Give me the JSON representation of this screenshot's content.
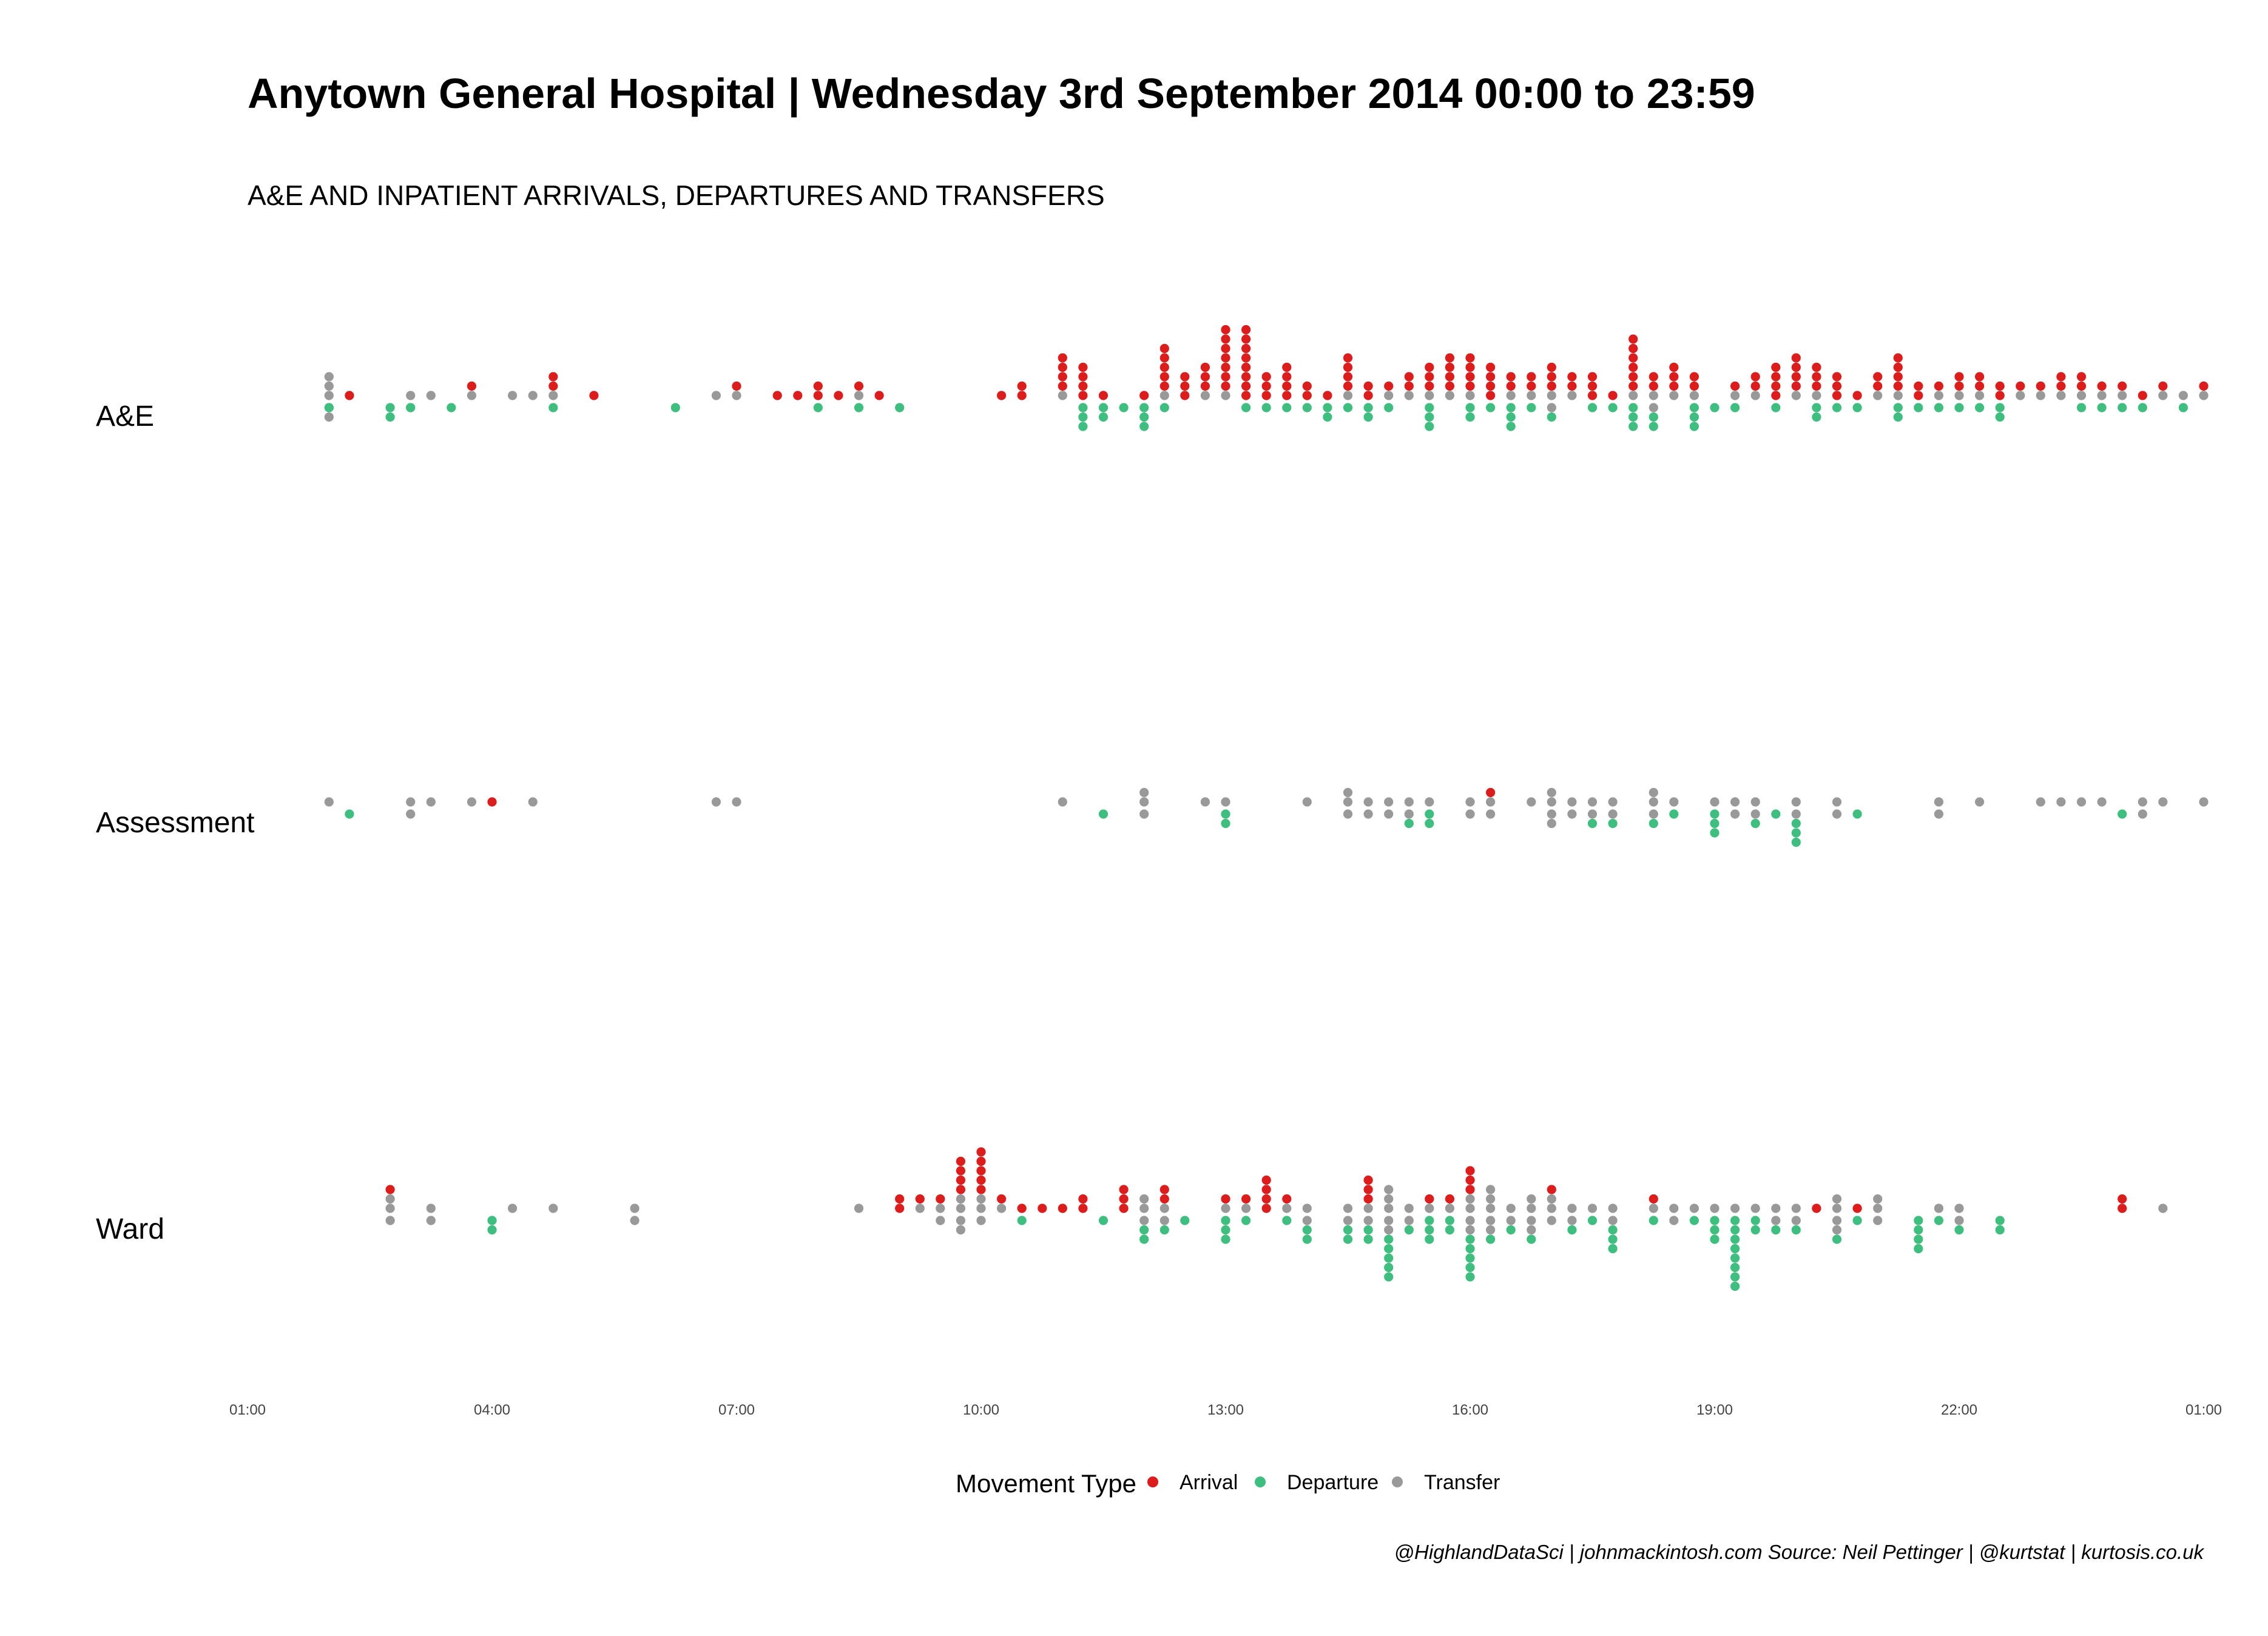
{
  "chart_data": {
    "type": "scatter",
    "subtype": "stacked dot plot",
    "title": "Anytown General Hospital | Wednesday 3rd September 2014 00:00 to 23:59",
    "subtitle": "A&E AND INPATIENT ARRIVALS, DEPARTURES AND TRANSFERS",
    "caption": "@HighlandDataSci | johnmackintosh.com  Source: Neil Pettinger | @kurtstat | kurtosis.co.uk",
    "x_domain_hours": [
      1,
      25
    ],
    "x_ticks": [
      "01:00",
      "04:00",
      "07:00",
      "10:00",
      "13:00",
      "16:00",
      "19:00",
      "22:00",
      "01:00"
    ],
    "legend": {
      "title": "Movement Type",
      "position": "bottom",
      "items": [
        {
          "label": "Arrival",
          "color": "#dd1c1c"
        },
        {
          "label": "Departure",
          "color": "#3fbf7f"
        },
        {
          "label": "Transfer",
          "color": "#999999"
        }
      ]
    },
    "colors": {
      "Arrival": "#dd1c1c",
      "Departure": "#3fbf7f",
      "Transfer": "#999999"
    },
    "rows": [
      {
        "name": "A&E",
        "bins": [
          [
            2.0,
            0,
            0,
            5
          ],
          [
            2.0,
            0,
            1,
            0
          ],
          [
            2.25,
            1,
            0,
            0
          ],
          [
            2.75,
            0,
            2,
            0
          ],
          [
            3.0,
            0,
            1,
            1
          ],
          [
            3.0,
            0,
            1,
            0
          ],
          [
            3.25,
            0,
            0,
            1
          ],
          [
            3.5,
            0,
            1,
            0
          ],
          [
            3.75,
            1,
            0,
            1
          ],
          [
            4.25,
            0,
            0,
            1
          ],
          [
            4.5,
            0,
            0,
            1
          ],
          [
            4.75,
            2,
            1,
            1
          ],
          [
            5.25,
            1,
            0,
            0
          ],
          [
            6.25,
            0,
            1,
            0
          ],
          [
            6.75,
            0,
            0,
            1
          ],
          [
            7.0,
            1,
            0,
            1
          ],
          [
            7.5,
            1,
            0,
            0
          ],
          [
            7.75,
            1,
            0,
            0
          ],
          [
            8.0,
            2,
            1,
            0
          ],
          [
            8.25,
            1,
            0,
            0
          ],
          [
            8.5,
            1,
            1,
            1
          ],
          [
            8.75,
            1,
            0,
            0
          ],
          [
            9.0,
            0,
            1,
            0
          ],
          [
            10.25,
            1,
            0,
            0
          ],
          [
            10.5,
            2,
            0,
            0
          ],
          [
            11.0,
            4,
            0,
            1
          ],
          [
            11.25,
            4,
            3,
            0
          ],
          [
            11.5,
            1,
            2,
            0
          ],
          [
            11.75,
            0,
            1,
            0
          ],
          [
            12.0,
            1,
            3,
            0
          ],
          [
            12.25,
            5,
            1,
            1
          ],
          [
            12.5,
            3,
            0,
            0
          ],
          [
            12.75,
            3,
            0,
            1
          ],
          [
            13.0,
            7,
            0,
            1
          ],
          [
            13.25,
            8,
            1,
            0
          ],
          [
            13.5,
            3,
            1,
            0
          ],
          [
            13.75,
            4,
            1,
            0
          ],
          [
            14.0,
            2,
            1,
            0
          ],
          [
            14.25,
            1,
            2,
            0
          ],
          [
            14.5,
            4,
            1,
            1
          ],
          [
            14.75,
            2,
            2,
            0
          ],
          [
            15.0,
            1,
            1,
            1
          ],
          [
            15.25,
            2,
            0,
            1
          ],
          [
            15.5,
            3,
            3,
            1
          ],
          [
            15.75,
            4,
            0,
            1
          ],
          [
            16.0,
            4,
            2,
            1
          ],
          [
            16.25,
            4,
            1,
            0
          ],
          [
            16.5,
            2,
            3,
            1
          ],
          [
            16.75,
            2,
            1,
            1
          ],
          [
            17.0,
            3,
            1,
            2
          ],
          [
            17.25,
            2,
            0,
            1
          ],
          [
            17.5,
            3,
            1,
            0
          ],
          [
            17.75,
            1,
            1,
            0
          ],
          [
            18.0,
            6,
            3,
            1
          ],
          [
            18.25,
            2,
            2,
            2
          ],
          [
            18.5,
            3,
            0,
            1
          ],
          [
            18.75,
            2,
            3,
            1
          ],
          [
            19.0,
            0,
            1,
            0
          ],
          [
            19.25,
            1,
            1,
            1
          ],
          [
            19.5,
            2,
            0,
            1
          ],
          [
            19.75,
            4,
            1,
            0
          ],
          [
            20.0,
            4,
            0,
            1
          ],
          [
            20.25,
            3,
            2,
            1
          ],
          [
            20.5,
            3,
            1,
            0
          ],
          [
            20.75,
            1,
            1,
            0
          ],
          [
            21.0,
            2,
            0,
            1
          ],
          [
            21.25,
            4,
            2,
            1
          ],
          [
            21.5,
            2,
            1,
            0
          ],
          [
            21.75,
            1,
            1,
            1
          ],
          [
            22.0,
            2,
            1,
            1
          ],
          [
            22.25,
            2,
            1,
            1
          ],
          [
            22.5,
            2,
            2,
            0
          ],
          [
            22.75,
            1,
            0,
            1
          ],
          [
            23.0,
            1,
            0,
            1
          ],
          [
            23.25,
            2,
            0,
            1
          ],
          [
            23.5,
            2,
            1,
            1
          ],
          [
            23.75,
            1,
            1,
            1
          ],
          [
            24.0,
            1,
            1,
            1
          ],
          [
            24.25,
            1,
            1,
            0
          ],
          [
            24.5,
            1,
            0,
            1
          ],
          [
            24.75,
            0,
            1,
            1
          ],
          [
            25.0,
            1,
            0,
            1
          ]
        ]
      },
      {
        "name": "Assessment",
        "bins": [
          [
            2.0,
            0,
            0,
            1
          ],
          [
            2.25,
            0,
            1,
            0
          ],
          [
            3.0,
            0,
            0,
            2
          ],
          [
            3.25,
            0,
            0,
            1
          ],
          [
            3.75,
            0,
            0,
            1
          ],
          [
            4.0,
            1,
            0,
            0
          ],
          [
            4.5,
            0,
            0,
            1
          ],
          [
            6.75,
            0,
            0,
            1
          ],
          [
            7.0,
            0,
            0,
            1
          ],
          [
            11.0,
            0,
            0,
            1
          ],
          [
            11.5,
            0,
            1,
            0
          ],
          [
            12.0,
            0,
            0,
            3
          ],
          [
            12.75,
            0,
            0,
            1
          ],
          [
            13.0,
            0,
            2,
            1
          ],
          [
            14.0,
            0,
            0,
            1
          ],
          [
            14.5,
            0,
            0,
            3
          ],
          [
            14.75,
            0,
            0,
            2
          ],
          [
            15.0,
            0,
            0,
            2
          ],
          [
            15.25,
            0,
            1,
            2
          ],
          [
            15.5,
            0,
            2,
            1
          ],
          [
            16.0,
            0,
            0,
            2
          ],
          [
            16.25,
            1,
            0,
            2
          ],
          [
            16.75,
            0,
            0,
            1
          ],
          [
            17.0,
            0,
            0,
            4
          ],
          [
            17.25,
            0,
            0,
            2
          ],
          [
            17.5,
            0,
            1,
            2
          ],
          [
            17.75,
            0,
            1,
            2
          ],
          [
            18.25,
            0,
            1,
            3
          ],
          [
            18.5,
            0,
            1,
            1
          ],
          [
            19.0,
            0,
            3,
            1
          ],
          [
            19.25,
            0,
            0,
            2
          ],
          [
            19.5,
            0,
            1,
            2
          ],
          [
            19.75,
            0,
            1,
            0
          ],
          [
            20.0,
            0,
            3,
            2
          ],
          [
            20.5,
            0,
            0,
            2
          ],
          [
            20.75,
            0,
            1,
            0
          ],
          [
            21.75,
            0,
            0,
            2
          ],
          [
            22.25,
            0,
            0,
            1
          ],
          [
            23.0,
            0,
            0,
            1
          ],
          [
            23.25,
            0,
            0,
            1
          ],
          [
            23.5,
            0,
            0,
            1
          ],
          [
            23.75,
            0,
            0,
            1
          ],
          [
            24.0,
            0,
            1,
            0
          ],
          [
            24.25,
            0,
            0,
            2
          ],
          [
            24.5,
            0,
            0,
            1
          ],
          [
            25.0,
            0,
            0,
            1
          ]
        ]
      },
      {
        "name": "Ward",
        "bins": [
          [
            2.75,
            1,
            0,
            3
          ],
          [
            3.25,
            0,
            0,
            2
          ],
          [
            4.0,
            0,
            2,
            0
          ],
          [
            4.25,
            0,
            0,
            1
          ],
          [
            4.75,
            0,
            0,
            1
          ],
          [
            5.75,
            0,
            0,
            2
          ],
          [
            8.5,
            0,
            0,
            1
          ],
          [
            9.0,
            2,
            0,
            0
          ],
          [
            9.25,
            1,
            0,
            1
          ],
          [
            9.5,
            1,
            0,
            2
          ],
          [
            9.75,
            4,
            0,
            4
          ],
          [
            10.0,
            5,
            0,
            3
          ],
          [
            10.25,
            1,
            0,
            1
          ],
          [
            10.5,
            1,
            1,
            0
          ],
          [
            10.75,
            1,
            0,
            0
          ],
          [
            11.0,
            1,
            0,
            0
          ],
          [
            11.25,
            2,
            0,
            0
          ],
          [
            11.5,
            0,
            1,
            0
          ],
          [
            11.75,
            3,
            0,
            0
          ],
          [
            12.0,
            0,
            2,
            3
          ],
          [
            12.25,
            2,
            1,
            2
          ],
          [
            12.5,
            0,
            1,
            0
          ],
          [
            13.0,
            1,
            3,
            1
          ],
          [
            13.25,
            1,
            1,
            1
          ],
          [
            13.5,
            4,
            0,
            0
          ],
          [
            13.75,
            1,
            1,
            1
          ],
          [
            14.0,
            0,
            2,
            2
          ],
          [
            14.5,
            0,
            2,
            2
          ],
          [
            14.75,
            3,
            2,
            2
          ],
          [
            15.0,
            0,
            5,
            5
          ],
          [
            15.25,
            0,
            1,
            2
          ],
          [
            15.5,
            1,
            3,
            1
          ],
          [
            15.75,
            1,
            2,
            1
          ],
          [
            16.0,
            3,
            5,
            4
          ],
          [
            16.25,
            0,
            1,
            5
          ],
          [
            16.5,
            0,
            1,
            2
          ],
          [
            16.75,
            0,
            1,
            4
          ],
          [
            17.0,
            1,
            0,
            3
          ],
          [
            17.25,
            0,
            1,
            2
          ],
          [
            17.5,
            0,
            1,
            1
          ],
          [
            17.75,
            0,
            3,
            2
          ],
          [
            18.25,
            1,
            1,
            1
          ],
          [
            18.5,
            0,
            0,
            2
          ],
          [
            18.75,
            0,
            1,
            1
          ],
          [
            19.0,
            0,
            3,
            1
          ],
          [
            19.25,
            0,
            8,
            1
          ],
          [
            19.5,
            0,
            2,
            1
          ],
          [
            19.75,
            0,
            1,
            2
          ],
          [
            20.0,
            0,
            1,
            2
          ],
          [
            20.25,
            1,
            0,
            0
          ],
          [
            20.5,
            0,
            1,
            4
          ],
          [
            20.75,
            1,
            1,
            0
          ],
          [
            21.0,
            0,
            0,
            3
          ],
          [
            21.5,
            0,
            4,
            0
          ],
          [
            21.75,
            0,
            1,
            1
          ],
          [
            22.0,
            0,
            1,
            2
          ],
          [
            22.5,
            0,
            2,
            0
          ],
          [
            24.0,
            2,
            0,
            0
          ],
          [
            24.5,
            0,
            0,
            1
          ]
        ]
      }
    ]
  }
}
